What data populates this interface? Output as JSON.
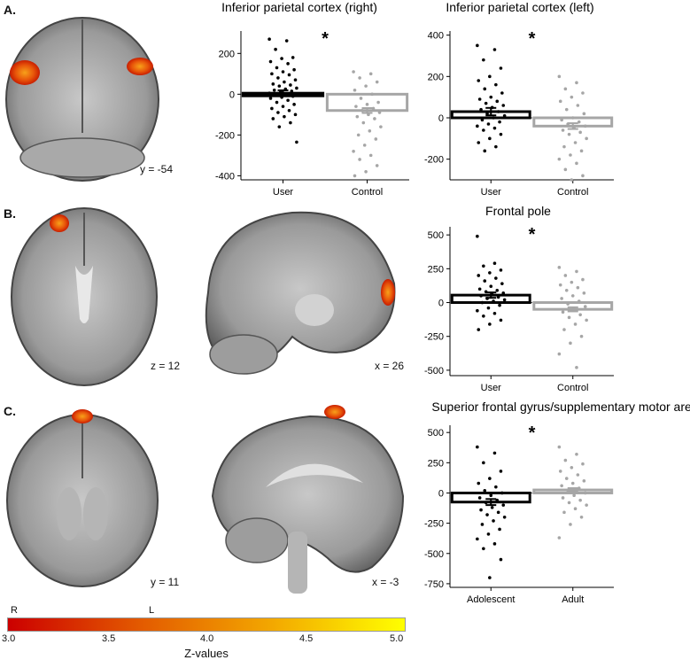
{
  "panel_labels": [
    "A.",
    "B.",
    "C."
  ],
  "brain_captions": {
    "a_coronal": "y = -54",
    "b_axial": "z = 12",
    "b_sagittal": "x = 26",
    "c_coronal": "y = 11",
    "c_sagittal": "x = -3"
  },
  "colorbar": {
    "left_label": "R",
    "right_label": "L",
    "ticks": [
      "3.0",
      "3.5",
      "4.0",
      "4.5",
      "5.0"
    ],
    "title": "Z-values",
    "colors": [
      "#cc0000",
      "#e35a00",
      "#f3a800",
      "#ffff00"
    ]
  },
  "colors": {
    "group1": "#000000",
    "group2": "#a6a6a6",
    "blob": "#e8660a"
  },
  "chart_data": [
    {
      "id": "ipc-right",
      "type": "bar",
      "title": "Inferior parietal cortex (right)",
      "categories": [
        "User",
        "Control"
      ],
      "values": [
        5,
        -80
      ],
      "errors": [
        14,
        12
      ],
      "ylim": [
        -420,
        310
      ],
      "yticks": [
        200,
        0,
        -200,
        -400
      ],
      "significance": "*",
      "points": [
        [
          270,
          262,
          220,
          180,
          175,
          160,
          150,
          130,
          120,
          110,
          100,
          95,
          80,
          70,
          60,
          50,
          45,
          40,
          30,
          25,
          20,
          15,
          10,
          5,
          0,
          -5,
          -10,
          -15,
          -20,
          -30,
          -40,
          -50,
          -60,
          -70,
          -80,
          -90,
          -100,
          -110,
          -120,
          -140,
          -160,
          -235
        ],
        [
          110,
          100,
          80,
          60,
          40,
          20,
          0,
          -20,
          -40,
          -50,
          -60,
          -70,
          -80,
          -90,
          -100,
          -110,
          -120,
          -140,
          -160,
          -180,
          -200,
          -220,
          -250,
          -280,
          -300,
          -320,
          -350,
          -380,
          -400
        ]
      ]
    },
    {
      "id": "ipc-left",
      "type": "bar",
      "title": "Inferior parietal cortex (left)",
      "categories": [
        "User",
        "Control"
      ],
      "values": [
        30,
        -40
      ],
      "errors": [
        18,
        14
      ],
      "ylim": [
        -300,
        420
      ],
      "yticks": [
        400,
        200,
        0,
        -200
      ],
      "significance": "*",
      "points": [
        [
          350,
          330,
          280,
          240,
          200,
          180,
          160,
          140,
          120,
          100,
          90,
          80,
          70,
          60,
          50,
          40,
          30,
          20,
          10,
          0,
          -10,
          -20,
          -30,
          -40,
          -50,
          -60,
          -80,
          -100,
          -120,
          -140,
          -160
        ],
        [
          200,
          170,
          140,
          120,
          100,
          80,
          60,
          40,
          20,
          0,
          -10,
          -20,
          -30,
          -40,
          -50,
          -60,
          -70,
          -80,
          -100,
          -120,
          -140,
          -160,
          -180,
          -200,
          -220,
          -250,
          -280,
          -300
        ]
      ]
    },
    {
      "id": "frontal-pole",
      "type": "bar",
      "title": "Frontal pole",
      "categories": [
        "User",
        "Control"
      ],
      "values": [
        55,
        -50
      ],
      "errors": [
        20,
        15
      ],
      "ylim": [
        -540,
        560
      ],
      "yticks": [
        500,
        250,
        0,
        -250,
        -500
      ],
      "significance": "*",
      "points": [
        [
          490,
          290,
          270,
          240,
          220,
          200,
          180,
          160,
          140,
          120,
          100,
          90,
          80,
          70,
          60,
          50,
          40,
          30,
          20,
          10,
          0,
          -20,
          -40,
          -60,
          -80,
          -100,
          -130,
          -160,
          -200
        ],
        [
          260,
          230,
          200,
          170,
          150,
          130,
          110,
          90,
          70,
          50,
          30,
          10,
          -10,
          -30,
          -50,
          -70,
          -90,
          -110,
          -130,
          -160,
          -200,
          -250,
          -300,
          -380,
          -480
        ]
      ]
    },
    {
      "id": "sfg-sma",
      "type": "bar",
      "title": "Superior frontal gyrus/supplementary motor area",
      "categories": [
        "Adolescent",
        "Adult"
      ],
      "values": [
        -75,
        25
      ],
      "errors": [
        25,
        15
      ],
      "ylim": [
        -780,
        560
      ],
      "yticks": [
        500,
        250,
        0,
        -250,
        -500,
        -750
      ],
      "significance": "*",
      "points": [
        [
          380,
          330,
          250,
          180,
          120,
          80,
          50,
          20,
          0,
          -20,
          -40,
          -60,
          -80,
          -100,
          -120,
          -140,
          -160,
          -180,
          -200,
          -230,
          -260,
          -300,
          -340,
          -380,
          -420,
          -460,
          -550,
          -700
        ],
        [
          380,
          320,
          270,
          240,
          210,
          180,
          150,
          120,
          100,
          80,
          60,
          40,
          20,
          0,
          -20,
          -40,
          -60,
          -80,
          -100,
          -130,
          -160,
          -200,
          -260,
          -370
        ]
      ]
    }
  ]
}
